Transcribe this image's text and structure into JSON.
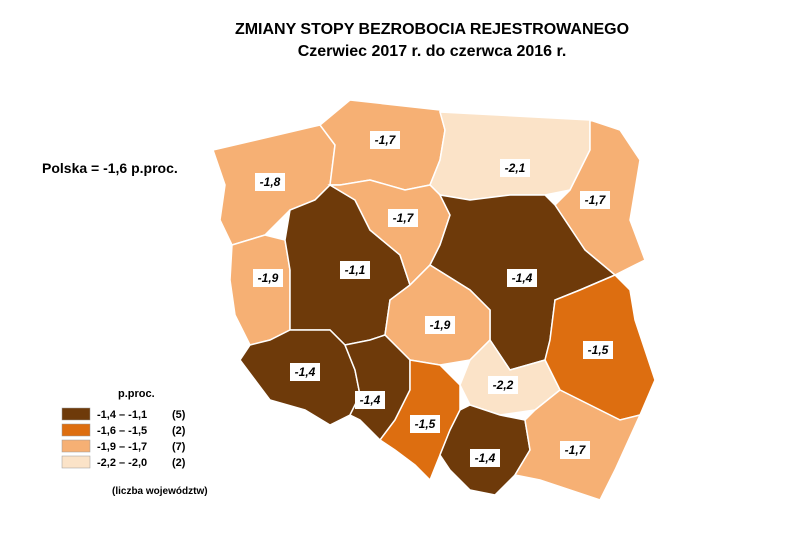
{
  "title": "ZMIANY STOPY BEZROBOCIA REJESTROWANEGO",
  "subtitle": "Czerwiec 2017 r. do czerwca 2016 r.",
  "national": "Polska = -1,6 p.proc.",
  "legend": {
    "title": "p.proc.",
    "note": "(liczba województw)",
    "items": [
      {
        "range": "-1,4 – -1,1",
        "count": "(5)",
        "color": "#6e3a0a"
      },
      {
        "range": "-1,6 – -1,5",
        "count": "(2)",
        "color": "#dd6e10"
      },
      {
        "range": "-1,9 – -1,7",
        "count": "(7)",
        "color": "#f6b074"
      },
      {
        "range": "-2,2 – -2,0",
        "count": "(2)",
        "color": "#fbe3c8"
      }
    ]
  },
  "regions": [
    {
      "value": -1.8,
      "label": "-1,8",
      "color": "#f6b074"
    },
    {
      "value": -1.7,
      "label": "-1,7",
      "color": "#f6b074"
    },
    {
      "value": -2.1,
      "label": "-2,1",
      "color": "#fbe3c8"
    },
    {
      "value": -1.7,
      "label": "-1,7",
      "color": "#f6b074"
    },
    {
      "value": -1.9,
      "label": "-1,9",
      "color": "#f6b074"
    },
    {
      "value": -1.1,
      "label": "-1,1",
      "color": "#6e3a0a"
    },
    {
      "value": -1.7,
      "label": "-1,7",
      "color": "#f6b074"
    },
    {
      "value": -1.4,
      "label": "-1,4",
      "color": "#6e3a0a"
    },
    {
      "value": -1.9,
      "label": "-1,9",
      "color": "#f6b074"
    },
    {
      "value": -1.5,
      "label": "-1,5",
      "color": "#dd6e10"
    },
    {
      "value": -1.4,
      "label": "-1,4",
      "color": "#6e3a0a"
    },
    {
      "value": -1.4,
      "label": "-1,4",
      "color": "#6e3a0a"
    },
    {
      "value": -1.5,
      "label": "-1,5",
      "color": "#dd6e10"
    },
    {
      "value": -2.2,
      "label": "-2,2",
      "color": "#fbe3c8"
    },
    {
      "value": -1.4,
      "label": "-1,4",
      "color": "#6e3a0a"
    },
    {
      "value": -1.7,
      "label": "-1,7",
      "color": "#f6b074"
    }
  ]
}
